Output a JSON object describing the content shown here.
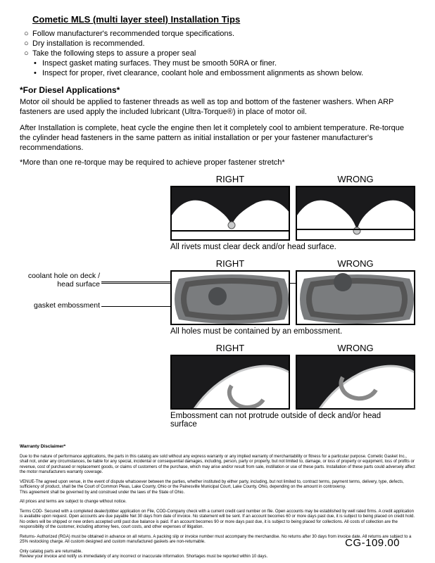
{
  "title": "Cometic MLS (multi layer steel) Installation Tips",
  "bullets": [
    {
      "mark": "○",
      "text": "Follow manufacturer's recommended torque specifications."
    },
    {
      "mark": "○",
      "text": "Dry installation is recommended."
    },
    {
      "mark": "○",
      "text": "Take the following steps to assure a proper seal"
    },
    {
      "mark": "•",
      "sub": true,
      "text": "Inspect gasket mating surfaces.  They must be smooth 50RA or finer."
    },
    {
      "mark": "•",
      "sub": true,
      "text": "Inspect for proper, rivet clearance, coolant hole and embossment alignments as shown below."
    }
  ],
  "subhead": "*For Diesel Applications*",
  "para1": "Motor oil should be applied to fastener threads as well as top and bottom of the fastener washers. When ARP fasteners are used apply the included lubricant (Ultra-Torque®) in place of motor oil.",
  "para2": "After Installation is complete, heat cycle the engine then let it completely cool to ambient temperature. Re-torque the cylinder head fasteners in the same pattern as initial installation or per your fastener manufacturer's recommendations.",
  "note": "*More than one re-torque may be required to achieve proper fastener stretch*",
  "labels": {
    "right": "RIGHT",
    "wrong": "WRONG"
  },
  "cap1": "All rivets must clear deck and/or head surface.",
  "cap2": "All holes must be contained by an embossment.",
  "cap3": "Embossment can not protrude outside of deck and/or head surface",
  "annot1": "coolant hole on deck / head surface",
  "annot2": "gasket embossment",
  "colors": {
    "gasket_dark": "#1a1a1c",
    "gasket_grey": "#7a7c7e",
    "gasket_light": "#c9cacb",
    "hole": "#4b4d4f",
    "border": "#000000",
    "bg": "#ffffff"
  },
  "fine": {
    "hd": "Warranty Disclaimer*",
    "p1": "Due to the nature of performance applications, the parts in this catalog are sold without any express warranty or any implied warranty of merchantability or fitness for a particular purpose.  Cometic Gasket Inc., shall not, under any circumstances, be liable for any special, incidental or consequential damages, including, person, party or property, but not limited to, damage, or loss of property or equipment, loss of profits or revenue, cost of purchased or replacement goods, or claims of customers of the purchase, which may arise and/or result from sale, instillation or use of these parts.  Installation of these parts could adversely affect the motor manufacturers warranty coverage.",
    "p2": "VENUE-The agreed upon venue, in the event of dispute whatsoever between the parties, whether instituted by either party, including, but not limited to, contract terms, payment terms, delivery, type, defects, sufficiency of product, shall be the Court of Common Pleas, Lake County, Ohio or the Painesville Municipal Court, Lake County, Ohio, depending on the amount in controversy.",
    "p2b": "This agreement shall be governed by and construed under the laws of the State of Ohio.",
    "p3": "All prices and terms are subject to change without notice.",
    "p4": "Terms COD- Secured with a completed dealer/jobber application on File, COD-Company check with a current credit card number on file.  Open accounts may be established by well rated firms.  A credit application is available upon request.  Open accounts are due payable Net 30 days from date of invoice.  No statement will be sent.  If an account becomes 60 or more days past due, it is subject to being placed on credit hold.  No orders will be shipped or new orders accepted until past due balance is paid.  If an account becomes 90 or more days past due, it is subject to being placed for collections.  All costs of collection are the responsibility of the customer, including attorney fees, court costs, and other expenses of litigation.",
    "p5": "Returns- Authorized (RGA) must be obtained in advance on all returns.  A packing slip or invoice number must accompany the merchandise.  No returns after 30 days from invoice date.  All returns are subject to a 25% restocking charge.  All custom designed and custom manufactured gaskets are non-returnable.",
    "p6": "Only catalog parts are returnable.",
    "p6b": "Review your invoice and notify us immediately of any incorrect or inaccurate information.  Shortages must be reported within 10 days."
  },
  "footer": "CG-109.00"
}
